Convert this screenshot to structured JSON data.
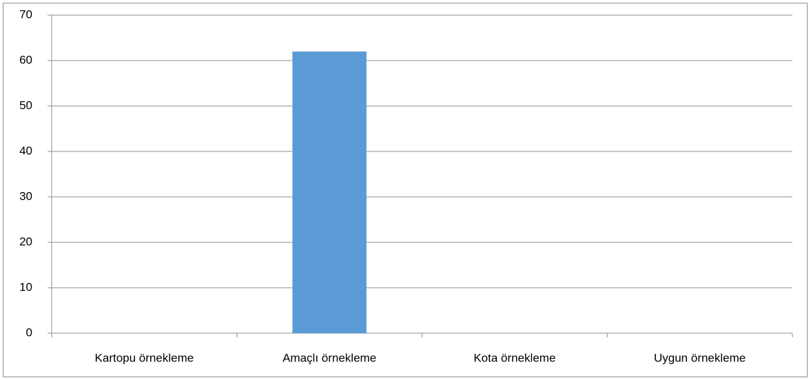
{
  "chart_data": {
    "type": "bar",
    "categories": [
      "Kartopu örnekleme",
      "Amaçlı örnekleme",
      "Kota örnekleme",
      "Uygun örnekleme"
    ],
    "values": [
      0,
      62,
      0,
      0
    ],
    "color": "#5b9bd5",
    "ylim": [
      0,
      70
    ],
    "yticks": [
      0,
      10,
      20,
      30,
      40,
      50,
      60,
      70
    ],
    "grid": true
  }
}
